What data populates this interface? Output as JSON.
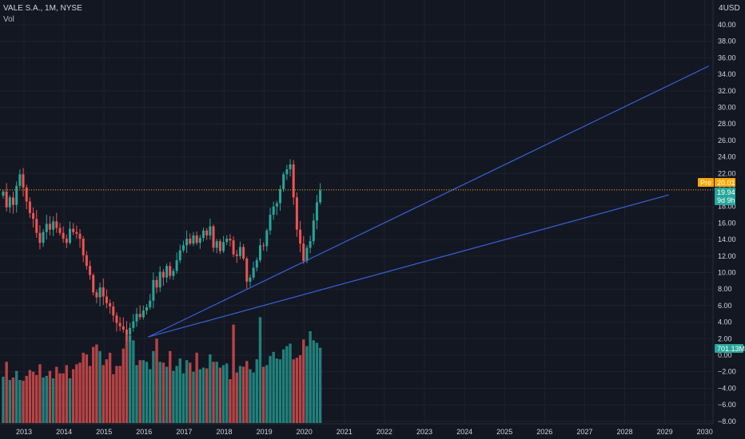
{
  "header": {
    "title": "VALE S.A., 1M, NYSE",
    "volume_label": "Vol",
    "currency": "USD",
    "currency_prefix": "4"
  },
  "colors": {
    "background": "#131722",
    "up": "#26a69a",
    "down": "#ef5350",
    "trendline": "#3961d8",
    "price_line": "#f7a600"
  },
  "chart_data": {
    "type": "candlestick",
    "title": "",
    "x_range": [
      2012.6,
      2030.2
    ],
    "y_range": [
      -9,
      42
    ],
    "x_ticks": [
      "2013",
      "2014",
      "2015",
      "2016",
      "2017",
      "2018",
      "2019",
      "2020",
      "2021",
      "2022",
      "2023",
      "2024",
      "2025",
      "2026",
      "2027",
      "2028",
      "2029",
      "2030"
    ],
    "y_ticks": [
      "40.00",
      "38.00",
      "36.00",
      "34.00",
      "32.00",
      "30.00",
      "28.00",
      "26.00",
      "24.00",
      "22.00",
      "20.00",
      "18.00",
      "16.00",
      "14.00",
      "12.00",
      "10.00",
      "8.00",
      "6.00",
      "4.00",
      "2.00",
      "0.00",
      "−2.00",
      "−4.00",
      "−6.00",
      "−8.00"
    ],
    "badges": {
      "pre_label": "Pre",
      "pre_value": "20.01",
      "last_value": "19.94",
      "countdown": "9d 9h",
      "volume_value": "701.13M"
    },
    "price_reference": 20.01,
    "candles_close": [
      19.8,
      17.9,
      19.1,
      18.2,
      20.5,
      21.9,
      20.3,
      18.6,
      17.2,
      16.5,
      14.8,
      13.6,
      14.9,
      15.9,
      15.2,
      16.2,
      15.4,
      14.8,
      14.1,
      13.6,
      15.3,
      14.9,
      14.7,
      14.1,
      12.1,
      10.8,
      9.7,
      7.6,
      7.0,
      8.2,
      7.1,
      6.3,
      5.9,
      4.8,
      3.9,
      3.5,
      3.1,
      2.5,
      3.3,
      4.1,
      5.0,
      4.6,
      5.4,
      5.8,
      6.6,
      9.1,
      8.2,
      10.1,
      9.4,
      10.8,
      9.6,
      10.2,
      11.5,
      12.7,
      13.3,
      14.1,
      13.5,
      14.5,
      13.6,
      14.2,
      15.1,
      14.5,
      15.6,
      13.0,
      13.8,
      12.6,
      13.7,
      14.1,
      13.9,
      12.2,
      12.0,
      13.1,
      11.7,
      8.9,
      9.4,
      10.6,
      11.5,
      13.3,
      13.2,
      15.1,
      17.0,
      18.0,
      18.4,
      20.1,
      21.9,
      22.5,
      23.1,
      19.1,
      15.2,
      13.5,
      11.4,
      13.0,
      13.8,
      16.3,
      18.5,
      19.94
    ],
    "volumes": [
      -2.6,
      -0.8,
      -3.0,
      -2.7,
      -1.9,
      -3.0,
      -3.1,
      -2.5,
      -1.8,
      -2.0,
      -2.4,
      -1.1,
      -2.7,
      -2.5,
      -1.9,
      -2.8,
      -1.4,
      -2.2,
      -2.2,
      -1.2,
      -2.8,
      -1.7,
      -1.1,
      -0.9,
      0.3,
      0.1,
      -1.3,
      1.0,
      1.3,
      0.5,
      -1.2,
      -0.5,
      0.3,
      -2.3,
      -1.3,
      -1.3,
      0.8,
      2.5,
      2.4,
      1.8,
      -1.2,
      -0.6,
      -0.6,
      -0.8,
      -1.7,
      0.5,
      2.0,
      -0.8,
      -0.9,
      -1.4,
      0.5,
      -1.9,
      -1.3,
      -0.4,
      -2.2,
      -0.6,
      -0.9,
      -2.0,
      0.3,
      -1.7,
      -1.5,
      -1.6,
      0.1,
      -0.8,
      -0.8,
      -1.5,
      -1.2,
      -1.0,
      -2.9,
      3.7,
      -2.1,
      -1.3,
      -1.4,
      -0.7,
      -1.7,
      -2.1,
      -0.5,
      4.6,
      -1.4,
      -1.2,
      -0.1,
      0.4,
      -0.4,
      -0.5,
      0.7,
      1.1,
      1.4,
      -0.5,
      -0.3,
      0.0,
      1.9,
      1.1,
      2.9,
      1.8,
      1.5,
      0.9
    ]
  }
}
